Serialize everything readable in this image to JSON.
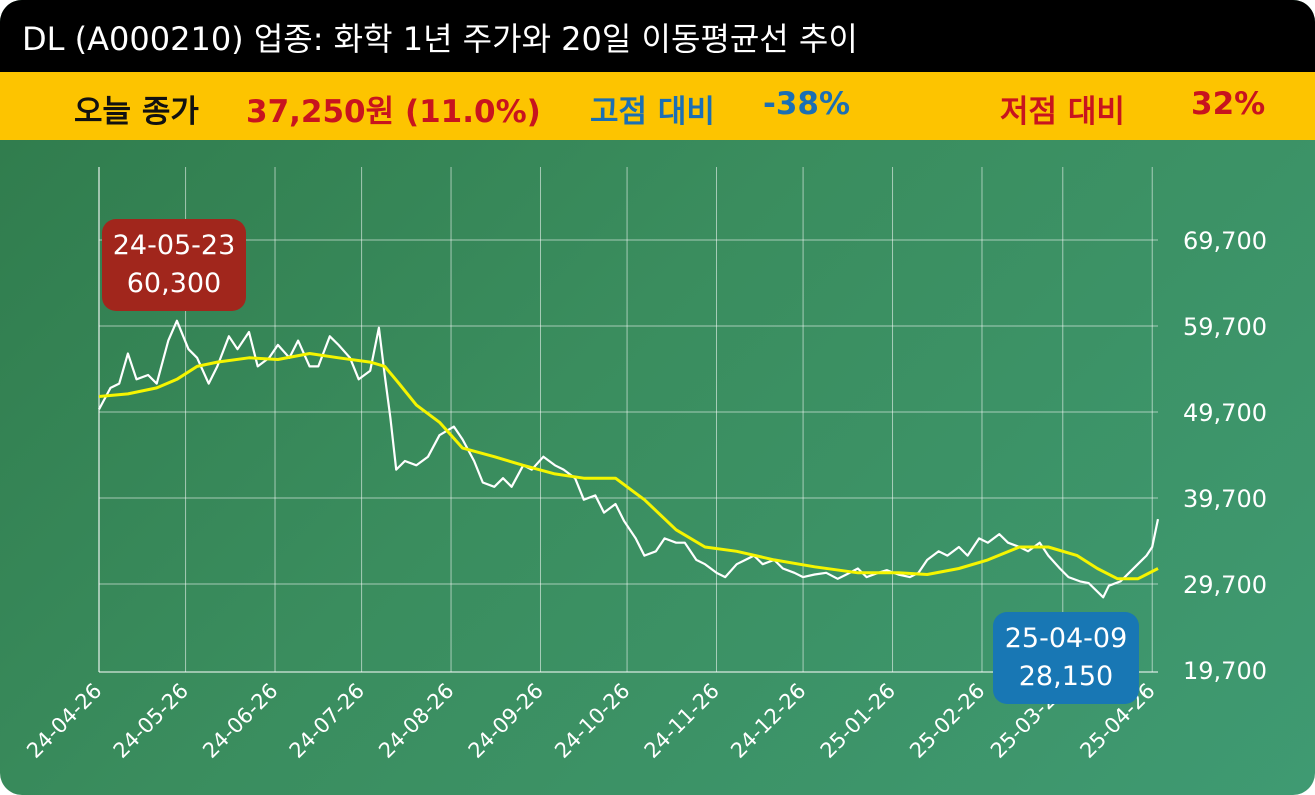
{
  "title": "DL (A000210) 업종: 화학 1년 주가와 20일 이동평균선 추이",
  "summary": {
    "close_label": "오늘 종가",
    "close_value": "37,250원 (11.0%)",
    "high_label": "고점 대비",
    "high_value": "-38%",
    "low_label": "저점 대비",
    "low_value": "32%"
  },
  "colors": {
    "title_bg": "#000000",
    "info_bg": "#fdc400",
    "close_value": "#c8141e",
    "high": "#1b6fb4",
    "low": "#c8141e",
    "price_line": "#ffffff",
    "ma_line": "#f5f500",
    "high_badge": "#a1261c",
    "low_badge": "#1877b4"
  },
  "annotations": {
    "high": {
      "date": "24-05-23",
      "value": "60,300"
    },
    "low": {
      "date": "25-04-09",
      "value": "28,150"
    }
  },
  "chart_data": {
    "type": "line",
    "title": "DL (A000210) 업종: 화학 1년 주가와 20일 이동평균선 추이",
    "x_tick_labels": [
      "24-04-26",
      "24-05-26",
      "24-06-26",
      "24-07-26",
      "24-08-26",
      "24-09-26",
      "24-10-26",
      "24-11-26",
      "24-12-26",
      "25-01-26",
      "25-02-26",
      "25-03-26",
      "25-04-26"
    ],
    "y_tick_labels": [
      "69,700",
      "59,700",
      "49,700",
      "39,700",
      "29,700",
      "19,700"
    ],
    "y_ticks": [
      69700,
      59700,
      49700,
      39700,
      29700,
      19700
    ],
    "ylim": [
      19700,
      69700
    ],
    "xlim": [
      "2024-04-26",
      "2025-04-28"
    ],
    "grid": true,
    "y_axis_side": "right",
    "series": [
      {
        "style": "price",
        "points": [
          [
            "2024-04-26",
            50000
          ],
          [
            "2024-04-30",
            52500
          ],
          [
            "2024-05-03",
            53000
          ],
          [
            "2024-05-06",
            56500
          ],
          [
            "2024-05-09",
            53500
          ],
          [
            "2024-05-13",
            54000
          ],
          [
            "2024-05-16",
            53000
          ],
          [
            "2024-05-20",
            58000
          ],
          [
            "2024-05-23",
            60300
          ],
          [
            "2024-05-27",
            57000
          ],
          [
            "2024-05-30",
            56000
          ],
          [
            "2024-06-03",
            53000
          ],
          [
            "2024-06-06",
            55000
          ],
          [
            "2024-06-10",
            58500
          ],
          [
            "2024-06-13",
            57000
          ],
          [
            "2024-06-17",
            59000
          ],
          [
            "2024-06-20",
            55000
          ],
          [
            "2024-06-24",
            56000
          ],
          [
            "2024-06-27",
            57500
          ],
          [
            "2024-07-01",
            56000
          ],
          [
            "2024-07-04",
            58000
          ],
          [
            "2024-07-08",
            55000
          ],
          [
            "2024-07-11",
            55000
          ],
          [
            "2024-07-15",
            58500
          ],
          [
            "2024-07-18",
            57500
          ],
          [
            "2024-07-22",
            56000
          ],
          [
            "2024-07-25",
            53500
          ],
          [
            "2024-07-29",
            54500
          ],
          [
            "2024-08-01",
            59500
          ],
          [
            "2024-08-03",
            54000
          ],
          [
            "2024-08-05",
            49000
          ],
          [
            "2024-08-07",
            43000
          ],
          [
            "2024-08-10",
            44000
          ],
          [
            "2024-08-14",
            43500
          ],
          [
            "2024-08-18",
            44500
          ],
          [
            "2024-08-22",
            47000
          ],
          [
            "2024-08-27",
            48000
          ],
          [
            "2024-08-30",
            46500
          ],
          [
            "2024-09-03",
            44000
          ],
          [
            "2024-09-06",
            41500
          ],
          [
            "2024-09-10",
            41000
          ],
          [
            "2024-09-13",
            42000
          ],
          [
            "2024-09-16",
            41000
          ],
          [
            "2024-09-20",
            43500
          ],
          [
            "2024-09-23",
            43000
          ],
          [
            "2024-09-27",
            44500
          ],
          [
            "2024-10-01",
            43500
          ],
          [
            "2024-10-04",
            43000
          ],
          [
            "2024-10-08",
            42000
          ],
          [
            "2024-10-11",
            39500
          ],
          [
            "2024-10-15",
            40000
          ],
          [
            "2024-10-18",
            38000
          ],
          [
            "2024-10-22",
            39000
          ],
          [
            "2024-10-25",
            37000
          ],
          [
            "2024-10-29",
            35000
          ],
          [
            "2024-11-01",
            33000
          ],
          [
            "2024-11-05",
            33500
          ],
          [
            "2024-11-08",
            35000
          ],
          [
            "2024-11-12",
            34500
          ],
          [
            "2024-11-15",
            34500
          ],
          [
            "2024-11-19",
            32500
          ],
          [
            "2024-11-22",
            32000
          ],
          [
            "2024-11-26",
            31000
          ],
          [
            "2024-11-29",
            30500
          ],
          [
            "2024-12-03",
            32000
          ],
          [
            "2024-12-06",
            32500
          ],
          [
            "2024-12-09",
            33000
          ],
          [
            "2024-12-12",
            32000
          ],
          [
            "2024-12-16",
            32500
          ],
          [
            "2024-12-19",
            31500
          ],
          [
            "2024-12-23",
            31000
          ],
          [
            "2024-12-26",
            30500
          ],
          [
            "2024-12-30",
            30800
          ],
          [
            "2025-01-03",
            31000
          ],
          [
            "2025-01-07",
            30300
          ],
          [
            "2025-01-10",
            30800
          ],
          [
            "2025-01-14",
            31500
          ],
          [
            "2025-01-17",
            30500
          ],
          [
            "2025-01-21",
            31000
          ],
          [
            "2025-01-24",
            31300
          ],
          [
            "2025-01-28",
            30800
          ],
          [
            "2025-02-01",
            30500
          ],
          [
            "2025-02-04",
            31000
          ],
          [
            "2025-02-07",
            32500
          ],
          [
            "2025-02-11",
            33500
          ],
          [
            "2025-02-14",
            33000
          ],
          [
            "2025-02-18",
            34000
          ],
          [
            "2025-02-21",
            33000
          ],
          [
            "2025-02-25",
            35000
          ],
          [
            "2025-02-28",
            34500
          ],
          [
            "2025-03-04",
            35500
          ],
          [
            "2025-03-07",
            34500
          ],
          [
            "2025-03-11",
            34000
          ],
          [
            "2025-03-14",
            33500
          ],
          [
            "2025-03-18",
            34500
          ],
          [
            "2025-03-21",
            33000
          ],
          [
            "2025-03-25",
            31500
          ],
          [
            "2025-03-28",
            30500
          ],
          [
            "2025-04-01",
            30000
          ],
          [
            "2025-04-04",
            29800
          ],
          [
            "2025-04-09",
            28150
          ],
          [
            "2025-04-11",
            29500
          ],
          [
            "2025-04-15",
            30000
          ],
          [
            "2025-04-18",
            31000
          ],
          [
            "2025-04-21",
            32000
          ],
          [
            "2025-04-24",
            33000
          ],
          [
            "2025-04-26",
            34000
          ],
          [
            "2025-04-28",
            37250
          ]
        ]
      },
      {
        "style": "moving_average",
        "points": [
          [
            "2024-04-26",
            51500
          ],
          [
            "2024-05-06",
            51800
          ],
          [
            "2024-05-16",
            52500
          ],
          [
            "2024-05-23",
            53500
          ],
          [
            "2024-05-30",
            55000
          ],
          [
            "2024-06-06",
            55500
          ],
          [
            "2024-06-17",
            56000
          ],
          [
            "2024-06-27",
            55800
          ],
          [
            "2024-07-08",
            56500
          ],
          [
            "2024-07-18",
            56000
          ],
          [
            "2024-07-29",
            55500
          ],
          [
            "2024-08-03",
            55000
          ],
          [
            "2024-08-08",
            53000
          ],
          [
            "2024-08-14",
            50500
          ],
          [
            "2024-08-22",
            48500
          ],
          [
            "2024-08-30",
            45500
          ],
          [
            "2024-09-10",
            44500
          ],
          [
            "2024-09-20",
            43500
          ],
          [
            "2024-10-01",
            42500
          ],
          [
            "2024-10-11",
            42000
          ],
          [
            "2024-10-22",
            42000
          ],
          [
            "2024-11-01",
            39500
          ],
          [
            "2024-11-12",
            36000
          ],
          [
            "2024-11-22",
            34000
          ],
          [
            "2024-12-03",
            33500
          ],
          [
            "2024-12-16",
            32500
          ],
          [
            "2024-12-30",
            31700
          ],
          [
            "2025-01-14",
            31000
          ],
          [
            "2025-01-28",
            31000
          ],
          [
            "2025-02-07",
            30800
          ],
          [
            "2025-02-18",
            31500
          ],
          [
            "2025-02-28",
            32500
          ],
          [
            "2025-03-11",
            34000
          ],
          [
            "2025-03-21",
            34000
          ],
          [
            "2025-03-31",
            33000
          ],
          [
            "2025-04-07",
            31500
          ],
          [
            "2025-04-14",
            30300
          ],
          [
            "2025-04-21",
            30300
          ],
          [
            "2025-04-28",
            31500
          ]
        ]
      }
    ]
  }
}
